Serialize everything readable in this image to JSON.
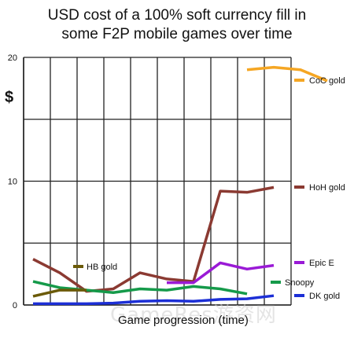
{
  "chart_data": {
    "type": "line",
    "title": [
      "USD cost of a 100% soft currency fill in",
      "some F2P mobile games over time"
    ],
    "xlabel": "Game progression (time)",
    "ylabel": "$",
    "ylim": [
      0,
      20
    ],
    "yticks": [
      0,
      10,
      20
    ],
    "grid": true,
    "series": [
      {
        "name": "CoC gold",
        "color": "#f5a623",
        "points": [
          [
            8,
            19.0
          ],
          [
            9,
            19.2
          ],
          [
            10,
            19.0
          ],
          [
            11,
            18.1
          ]
        ]
      },
      {
        "name": "HoH gold",
        "color": "#8b3a32",
        "points": [
          [
            0,
            3.7
          ],
          [
            1,
            2.6
          ],
          [
            2,
            1.1
          ],
          [
            3,
            1.3
          ],
          [
            4,
            2.6
          ],
          [
            5,
            2.1
          ],
          [
            6,
            1.9
          ],
          [
            7,
            9.2
          ],
          [
            8,
            9.1
          ],
          [
            9,
            9.5
          ]
        ]
      },
      {
        "name": "Epic E",
        "color": "#9a1ad6",
        "points": [
          [
            5,
            1.8
          ],
          [
            6,
            1.8
          ],
          [
            7,
            3.4
          ],
          [
            8,
            2.9
          ],
          [
            9,
            3.2
          ]
        ]
      },
      {
        "name": "Snoopy",
        "color": "#159a4a",
        "points": [
          [
            0,
            1.9
          ],
          [
            1,
            1.4
          ],
          [
            2,
            1.2
          ],
          [
            3,
            1.0
          ],
          [
            4,
            1.3
          ],
          [
            5,
            1.2
          ],
          [
            6,
            1.5
          ],
          [
            7,
            1.3
          ],
          [
            8,
            0.9
          ]
        ]
      },
      {
        "name": "DK gold",
        "color": "#1c2fd6",
        "points": [
          [
            0,
            0.1
          ],
          [
            1,
            0.1
          ],
          [
            2,
            0.1
          ],
          [
            3,
            0.15
          ],
          [
            4,
            0.3
          ],
          [
            5,
            0.35
          ],
          [
            6,
            0.3
          ],
          [
            7,
            0.45
          ],
          [
            8,
            0.5
          ],
          [
            9,
            0.75
          ]
        ]
      },
      {
        "name": "HB gold",
        "color": "#6b5a08",
        "points": [
          [
            0,
            0.7
          ],
          [
            1,
            1.2
          ],
          [
            2,
            1.2
          ]
        ]
      }
    ]
  },
  "watermark": "GameRes游资网"
}
